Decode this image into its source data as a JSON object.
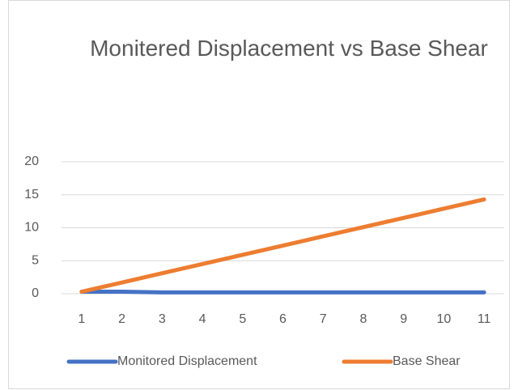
{
  "chart_data": {
    "type": "line",
    "title": "Monitered Displacement vs Base Shear",
    "categories": [
      "1",
      "2",
      "3",
      "4",
      "5",
      "6",
      "7",
      "8",
      "9",
      "10",
      "11"
    ],
    "series": [
      {
        "name": "Monitored Displacement",
        "color": "#4472c4",
        "values": [
          0.3,
          0.3,
          0.2,
          0.2,
          0.2,
          0.2,
          0.2,
          0.2,
          0.2,
          0.2,
          0.2
        ]
      },
      {
        "name": "Base Shear",
        "color": "#ed7d31",
        "values": [
          0.3,
          1.7,
          3.1,
          4.5,
          5.9,
          7.3,
          8.7,
          10.1,
          11.5,
          12.9,
          14.3
        ]
      }
    ],
    "ylim": [
      0,
      20
    ],
    "yticks": [
      0,
      5,
      10,
      15,
      20
    ],
    "grid": true,
    "legend": "bottom"
  }
}
